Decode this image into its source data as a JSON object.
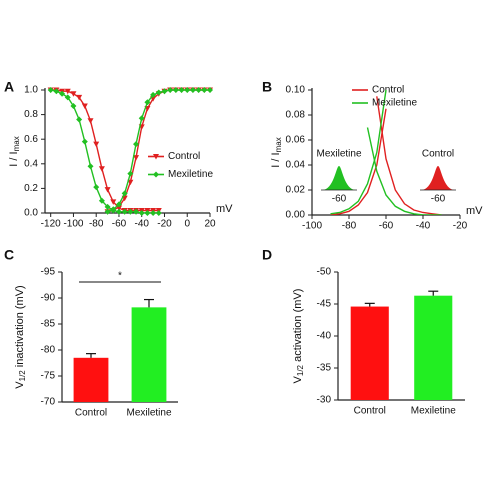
{
  "chart_data": [
    {
      "type": "line",
      "panel": "A",
      "ylabel": {
        "main": "I / I",
        "sub": "max"
      },
      "xlabel": "mV",
      "x": [
        -120,
        -115,
        -110,
        -105,
        -100,
        -95,
        -90,
        -85,
        -80,
        -75,
        -70,
        -65,
        -60,
        -55,
        -50,
        -45,
        -40,
        -35,
        -30,
        -25,
        -20,
        -15,
        -10,
        -5,
        0,
        5,
        10,
        15,
        20
      ],
      "series": [
        {
          "name": "Control",
          "color": "#e02020",
          "marker": "triangle-down",
          "inactivation": [
            1.0,
            1.0,
            0.99,
            0.99,
            0.97,
            0.94,
            0.87,
            0.75,
            0.56,
            0.36,
            0.19,
            0.09,
            0.04,
            0.02,
            0.02,
            0.02,
            0.02,
            0.02,
            0.02,
            0.02,
            null,
            null,
            null,
            null,
            null,
            null,
            null,
            null,
            null
          ],
          "activation": [
            null,
            null,
            null,
            null,
            null,
            null,
            null,
            null,
            null,
            null,
            0.01,
            0.02,
            0.05,
            0.12,
            0.25,
            0.45,
            0.7,
            0.85,
            0.93,
            0.97,
            0.99,
            1.0,
            1.0,
            1.0,
            1.0,
            1.0,
            1.0,
            1.0,
            1.0
          ]
        },
        {
          "name": "Mexiletine",
          "color": "#22c022",
          "marker": "diamond",
          "inactivation": [
            1.0,
            0.99,
            0.97,
            0.94,
            0.87,
            0.76,
            0.58,
            0.38,
            0.21,
            0.1,
            0.05,
            0.02,
            0.01,
            0.01,
            0.01,
            0.01,
            0.0,
            0.0,
            0.0,
            0.0,
            null,
            null,
            null,
            null,
            null,
            null,
            null,
            null,
            null
          ],
          "activation": [
            null,
            null,
            null,
            null,
            null,
            null,
            null,
            null,
            null,
            null,
            0.01,
            0.03,
            0.07,
            0.16,
            0.32,
            0.56,
            0.77,
            0.9,
            0.96,
            0.98,
            0.99,
            1.0,
            1.0,
            1.0,
            1.0,
            1.0,
            1.0,
            1.0,
            1.0
          ]
        }
      ],
      "xlim": [
        -125,
        20
      ],
      "xticks": [
        -120,
        -100,
        -80,
        -60,
        -40,
        -20,
        0,
        20
      ],
      "ylim": [
        0,
        1.0
      ],
      "yticks": [
        {
          "value": 0,
          "label": "0.0"
        },
        0.2,
        0.4,
        0.6,
        0.8,
        {
          "value": 1.0,
          "label": "1.0"
        }
      ],
      "legend": "center-right"
    },
    {
      "type": "line",
      "panel": "B",
      "ylabel": {
        "main": "I / I",
        "sub": "max"
      },
      "xlabel": "mV",
      "x": [
        -90,
        -85,
        -80,
        -75,
        -70,
        -65,
        -60,
        -55,
        -50,
        -45,
        -40,
        -35,
        -30
      ],
      "series": [
        {
          "name": "Control",
          "color": "#e02020",
          "activation": [
            0.0,
            0.001,
            0.003,
            0.008,
            0.018,
            0.04,
            0.085,
            null,
            null,
            null,
            null,
            null,
            null
          ],
          "inactivation": [
            null,
            null,
            null,
            null,
            null,
            0.095,
            0.045,
            0.02,
            0.009,
            0.004,
            0.002,
            0.001,
            0.0
          ]
        },
        {
          "name": "Mexiletine",
          "color": "#22c022",
          "activation": [
            0.001,
            0.002,
            0.005,
            0.011,
            0.025,
            0.05,
            0.1,
            null,
            null,
            null,
            null,
            null,
            null
          ],
          "inactivation": [
            null,
            null,
            null,
            null,
            0.07,
            0.035,
            0.016,
            0.007,
            0.003,
            0.001,
            0.0,
            0.0,
            0.0
          ]
        }
      ],
      "xlim": [
        -100,
        -20
      ],
      "xticks": [
        -100,
        -80,
        -60,
        -40,
        -20
      ],
      "ylim": [
        0,
        0.1
      ],
      "yticks": [
        {
          "value": 0,
          "label": "0.00"
        },
        0.02,
        0.04,
        0.06,
        0.08,
        {
          "value": 0.1,
          "label": "0.10"
        }
      ],
      "legend": "top",
      "insets": [
        {
          "label": "Mexiletine",
          "voltage": -60,
          "color": "#22c022"
        },
        {
          "label": "Control",
          "voltage": -60,
          "color": "#e02020"
        }
      ]
    },
    {
      "type": "bar",
      "panel": "C",
      "ylabel": {
        "main": "V",
        "sub": "1/2",
        "rest": " inactivation (mV)"
      },
      "categories": [
        "Control",
        "Mexiletine"
      ],
      "values": [
        -78.5,
        -88.2
      ],
      "errors": [
        0.8,
        1.5
      ],
      "colors": [
        "#ff1010",
        "#22ee22"
      ],
      "ylim": [
        -70,
        -95
      ],
      "yticks": [
        -70,
        -75,
        -80,
        -85,
        -90,
        -95
      ],
      "significance": "*"
    },
    {
      "type": "bar",
      "panel": "D",
      "ylabel": {
        "main": "V",
        "sub": "1/2",
        "rest": " activation (mV)"
      },
      "categories": [
        "Control",
        "Mexiletine"
      ],
      "values": [
        -44.6,
        -46.3
      ],
      "errors": [
        0.5,
        0.7
      ],
      "colors": [
        "#ff1010",
        "#22ee22"
      ],
      "ylim": [
        -30,
        -50
      ],
      "yticks": [
        -30,
        -35,
        -40,
        -45,
        -50
      ]
    }
  ]
}
